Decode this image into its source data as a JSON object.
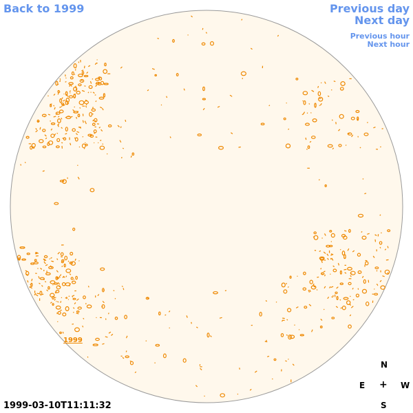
{
  "nav": {
    "back": "Back to 1999",
    "previous_day": "Previous day",
    "next_day": "Next day",
    "previous_hour": "Previous hour",
    "next_hour": "Next hour"
  },
  "timestamp": "1999-03-10T11:11:32",
  "year_label": "1999",
  "compass": {
    "north": "N",
    "south": "S",
    "east": "E",
    "west": "W",
    "center": "+"
  },
  "colors": {
    "disk_fill": "#fff8ec",
    "disk_outline": "#999999",
    "contour": "#ee8800",
    "link": "#6495ed"
  }
}
